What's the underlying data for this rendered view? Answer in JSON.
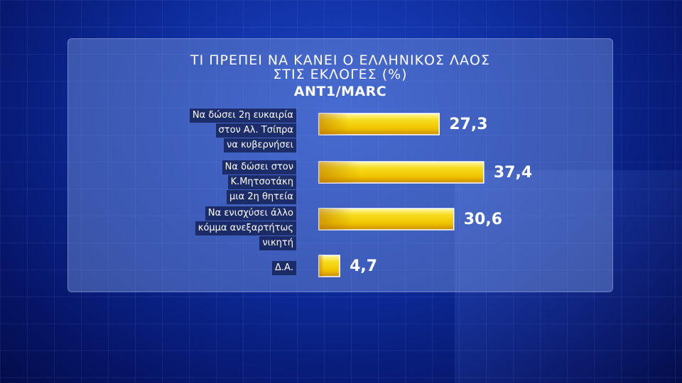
{
  "chart_data": {
    "type": "bar",
    "orientation": "horizontal",
    "title": [
      "ΤΙ ΠΡΕΠΕΙ ΝΑ ΚΑΝΕΙ Ο ΕΛΛΗΝΙΚΟΣ ΛΑΟΣ",
      "ΣΤΙΣ ΕΚΛΟΓΕΣ (%)"
    ],
    "subtitle": "ANT1/MARC",
    "categories": [
      [
        "Να δώσει 2η ευκαιρία",
        "στον Αλ. Τσίπρα",
        "να κυβερνήσει"
      ],
      [
        "Να δώσει στον",
        "Κ.Μητσοτάκη",
        "μια 2η θητεία"
      ],
      [
        "Να ενισχύσει άλλο",
        "κόμμα ανεξαρτήτως",
        "νικητή"
      ],
      [
        "Δ.Α."
      ]
    ],
    "values": [
      27.3,
      37.4,
      30.6,
      4.7
    ],
    "value_labels": [
      "27,3",
      "37,4",
      "30,6",
      "4,7"
    ],
    "colors": {
      "bar_light": "#fff27a",
      "bar_mid": "#f5d20a",
      "bar_dark": "#d99a00",
      "panel": "#7896dc"
    }
  }
}
